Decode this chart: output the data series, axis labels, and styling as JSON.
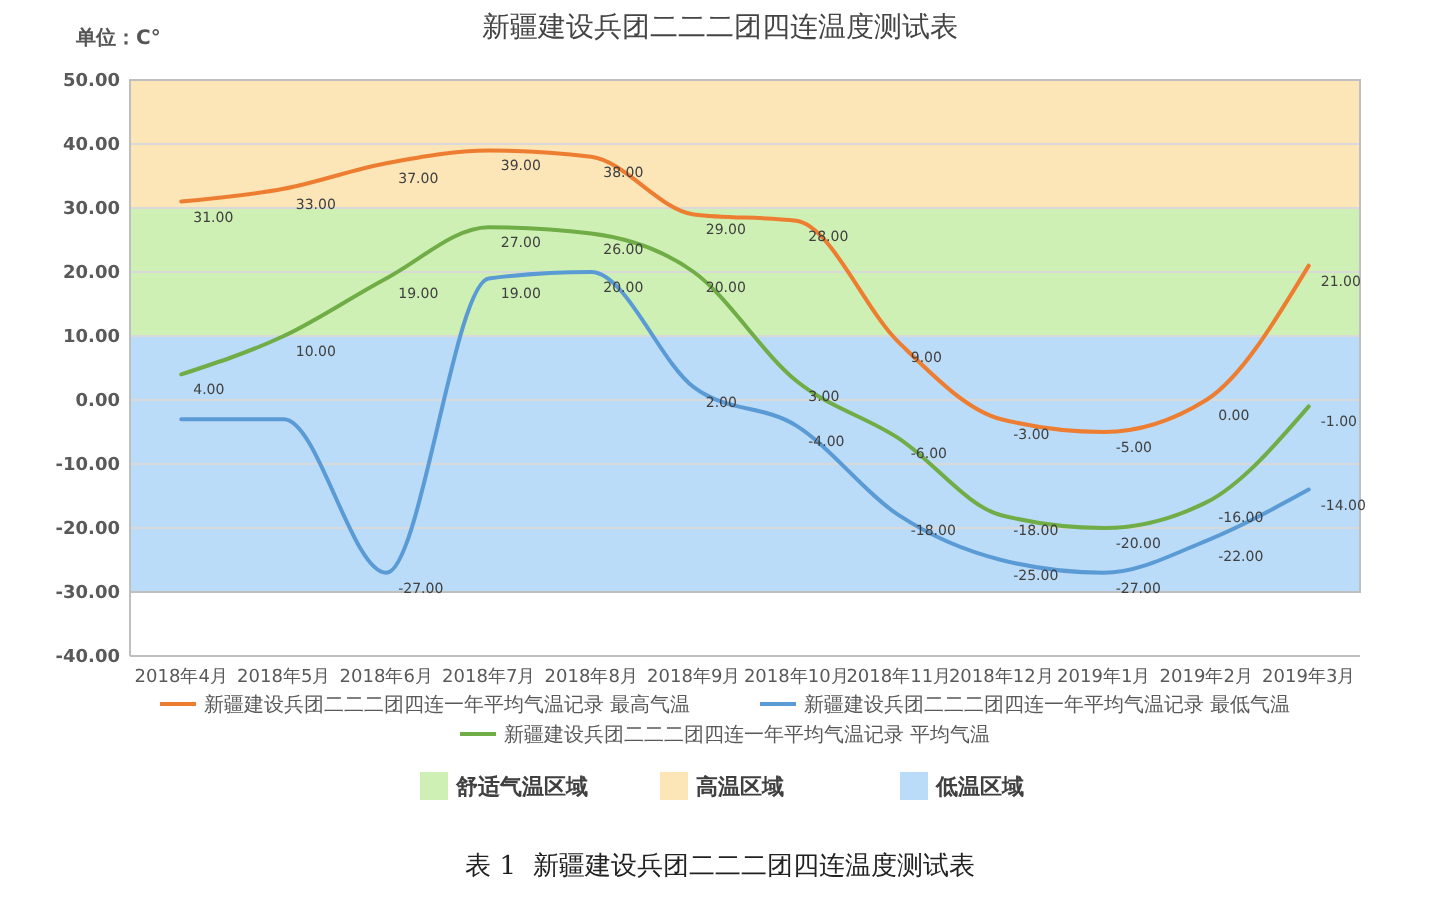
{
  "chart_data": {
    "type": "line",
    "title": "新疆建设兵团二二二团四连温度测试表",
    "ylabel": "单位：C°",
    "categories": [
      "2018年4月",
      "2018年5月",
      "2018年6月",
      "2018年7月",
      "2018年8月",
      "2018年9月",
      "2018年10月",
      "2018年11月",
      "2018年12月",
      "2019年1月",
      "2019年2月",
      "2019年3月"
    ],
    "series": [
      {
        "name": "新疆建设兵团二二二团四连一年平均气温记录 最高气温",
        "color": "#ed7d31",
        "values": [
          31,
          33,
          37,
          39,
          38,
          29,
          28,
          9,
          -3,
          -5,
          0,
          21
        ],
        "value_labels": [
          "31.00",
          "33.00",
          "37.00",
          "39.00",
          "38.00",
          "29.00",
          "28.00",
          "9.00",
          "-3.00",
          "-5.00",
          "0.00",
          "21.00"
        ]
      },
      {
        "name": "新疆建设兵团二二二团四连一年平均气温记录 最低气温",
        "color": "#5b9bd5",
        "values": [
          -3,
          -3,
          -27,
          19,
          20,
          2,
          -4,
          -18,
          -25,
          -27,
          -22,
          -14
        ],
        "value_labels": [
          null,
          null,
          "-27.00",
          "19.00",
          "20.00",
          "2.00",
          "-4.00",
          "-18.00",
          "-25.00",
          "-27.00",
          "-22.00",
          "-14.00"
        ]
      },
      {
        "name": "新疆建设兵团二二二团四连一年平均气温记录 平均气温",
        "color": "#70ad47",
        "values": [
          4,
          10,
          19,
          27,
          26,
          20,
          3,
          -6,
          -18,
          -20,
          -16,
          -1
        ],
        "value_labels": [
          "4.00",
          "10.00",
          "19.00",
          "27.00",
          "26.00",
          "20.00",
          "3.00",
          "-6.00",
          "-18.00",
          "-20.00",
          "-16.00",
          "-1.00"
        ]
      }
    ],
    "ylim": [
      -40,
      50
    ],
    "yticks": [
      {
        "value": -40,
        "label": "-40.00"
      },
      {
        "value": -30,
        "label": "-30.00"
      },
      {
        "value": -20,
        "label": "-20.00"
      },
      {
        "value": -10,
        "label": "-10.00"
      },
      {
        "value": 0,
        "label": "0.00"
      },
      {
        "value": 10,
        "label": "10.00"
      },
      {
        "value": 20,
        "label": "20.00"
      },
      {
        "value": 30,
        "label": "30.00"
      },
      {
        "value": 40,
        "label": "40.00"
      },
      {
        "value": 50,
        "label": "50.00"
      }
    ],
    "bands": [
      {
        "axis": "y",
        "from": 10,
        "to": 30,
        "label": "舒适气温区域",
        "color": "#cff0b4"
      },
      {
        "axis": "y",
        "from": 30,
        "to": 50,
        "label": "高温区域",
        "color": "#fce6b8"
      },
      {
        "axis": "y",
        "from": -30,
        "to": 10,
        "label": "低温区域",
        "color": "#bbdcf8"
      }
    ],
    "grid": "y",
    "legend": "bottom",
    "marker": "none",
    "line_style": "solid",
    "annotations": [
      "表 1  新疆建设兵团二二二团四连温度测试表"
    ]
  }
}
